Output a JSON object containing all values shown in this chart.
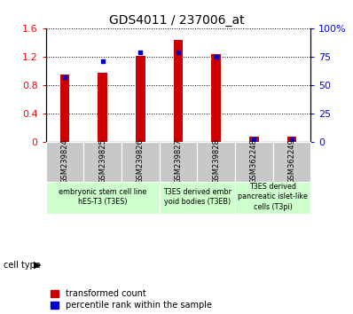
{
  "title": "GDS4011 / 237006_at",
  "samples": [
    "GSM239824",
    "GSM239825",
    "GSM239826",
    "GSM239827",
    "GSM239828",
    "GSM362248",
    "GSM362249"
  ],
  "transformed_count": [
    0.95,
    0.98,
    1.21,
    1.44,
    1.24,
    0.08,
    0.075
  ],
  "percentile_rank_pct": [
    57,
    71,
    79,
    79,
    75,
    3,
    3
  ],
  "ylim_left": [
    0,
    1.6
  ],
  "ylim_right": [
    0,
    100
  ],
  "yticks_left": [
    0,
    0.4,
    0.8,
    1.2,
    1.6
  ],
  "ytick_labels_left": [
    "0",
    "0.4",
    "0.8",
    "1.2",
    "1.6"
  ],
  "yticks_right": [
    0,
    25,
    50,
    75,
    100
  ],
  "ytick_labels_right": [
    "0",
    "25",
    "50",
    "75",
    "100%"
  ],
  "bar_color": "#cc0000",
  "dot_color": "#0000cc",
  "cell_type_groups": [
    {
      "label": "embryonic stem cell line\nhES-T3 (T3ES)",
      "start": 0,
      "end": 3
    },
    {
      "label": "T3ES derived embr\nyoid bodies (T3EB)",
      "start": 3,
      "end": 5
    },
    {
      "label": "T3ES derived\npancreatic islet-like\ncells (T3pi)",
      "start": 5,
      "end": 7
    }
  ],
  "cell_type_color": "#ccffcc",
  "sample_box_color": "#c8c8c8",
  "legend_red": "transformed count",
  "legend_blue": "percentile rank within the sample",
  "cell_type_label": "cell type",
  "background_color": "#ffffff",
  "bar_width": 0.25,
  "title_fontsize": 10,
  "axis_fontsize": 8,
  "label_fontsize": 7,
  "legend_fontsize": 7
}
